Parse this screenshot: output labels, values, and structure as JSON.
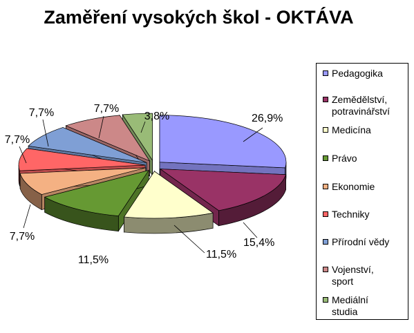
{
  "chart_data": {
    "type": "pie",
    "title": "Zaměření vysokých škol - OKTÁVA",
    "legend_position": "right",
    "slices": [
      {
        "name": "Pedagogika",
        "legend_lines": [
          "Pedagogika"
        ],
        "value": 26.9,
        "label": "26,9%",
        "color": "#9999ff"
      },
      {
        "name": "Zemědělství, potravinářství",
        "legend_lines": [
          "Zemědělství,",
          "potravinářství"
        ],
        "value": 15.4,
        "label": "15,4%",
        "color": "#993366"
      },
      {
        "name": "Medicína",
        "legend_lines": [
          "Medicína"
        ],
        "value": 11.5,
        "label": "11,5%",
        "color": "#ffffcc"
      },
      {
        "name": "Právo",
        "legend_lines": [
          "Právo"
        ],
        "value": 11.5,
        "label": "11,5%",
        "color": "#669933"
      },
      {
        "name": "Ekonomie",
        "legend_lines": [
          "Ekonomie"
        ],
        "value": 7.7,
        "label": "7,7%",
        "color": "#f4b183"
      },
      {
        "name": "Techniky",
        "legend_lines": [
          "Techniky"
        ],
        "value": 7.7,
        "label": "7,7%",
        "color": "#ff6666"
      },
      {
        "name": "Přírodní vědy",
        "legend_lines": [
          "Přírodní vědy"
        ],
        "value": 7.7,
        "label": "7,7%",
        "color": "#7f9fd5"
      },
      {
        "name": "Vojenství, sport",
        "legend_lines": [
          "Vojenství,",
          "sport"
        ],
        "value": 7.7,
        "label": "7,7%",
        "color": "#cc8888"
      },
      {
        "name": "Mediální studia",
        "legend_lines": [
          "Mediální",
          "studia"
        ],
        "value": 3.8,
        "label": "3,8%",
        "color": "#99bb77"
      }
    ]
  }
}
